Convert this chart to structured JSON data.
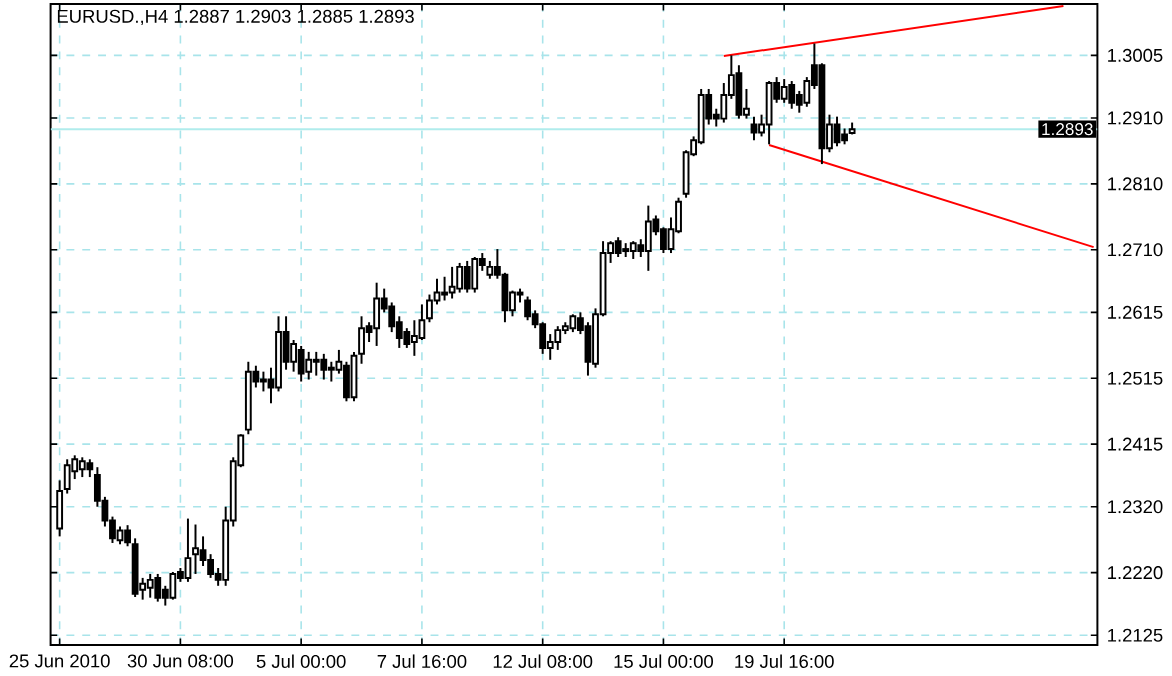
{
  "chart_data": {
    "type": "candlestick",
    "title": "EURUSD.,H4  1.2887 1.2903 1.2885 1.2893",
    "categories": [
      "25 Jun 2010",
      null,
      null,
      null,
      null,
      null,
      null,
      null,
      null,
      null,
      null,
      null,
      null,
      null,
      null,
      null,
      "30 Jun 08:00",
      null,
      null,
      null,
      null,
      null,
      null,
      null,
      null,
      null,
      null,
      null,
      null,
      null,
      null,
      null,
      "5 Jul 00:00",
      null,
      null,
      null,
      null,
      null,
      null,
      null,
      null,
      null,
      null,
      null,
      null,
      null,
      null,
      null,
      "7 Jul 16:00",
      null,
      null,
      null,
      null,
      null,
      null,
      null,
      null,
      null,
      null,
      null,
      null,
      null,
      null,
      null,
      "12 Jul 08:00",
      null,
      null,
      null,
      null,
      null,
      null,
      null,
      null,
      null,
      null,
      null,
      null,
      null,
      null,
      null,
      "15 Jul 00:00",
      null,
      null,
      null,
      null,
      null,
      null,
      null,
      null,
      null,
      null,
      null,
      null,
      null,
      null,
      null,
      "19 Jul 16:00",
      null,
      null,
      null,
      null,
      null,
      null,
      null,
      null,
      null,
      null,
      null,
      null,
      null,
      null,
      null,
      null,
      null,
      null,
      null,
      null,
      null,
      null,
      null,
      null,
      null,
      null,
      null,
      null,
      null,
      null,
      null,
      null,
      null,
      null,
      null,
      null,
      null,
      null,
      null,
      null,
      null
    ],
    "ohlc": [
      [
        1.2287,
        1.236,
        1.2275,
        1.2344
      ],
      [
        1.2347,
        1.2392,
        1.234,
        1.2383
      ],
      [
        1.2374,
        1.2398,
        1.2362,
        1.2392
      ],
      [
        1.2377,
        1.2395,
        1.2365,
        1.2389
      ],
      [
        1.2386,
        1.2392,
        1.2365,
        1.2377
      ],
      [
        1.2368,
        1.238,
        1.232,
        1.2329
      ],
      [
        1.2329,
        1.2335,
        1.229,
        1.2299
      ],
      [
        1.2299,
        1.2305,
        1.2265,
        1.2272
      ],
      [
        1.2269,
        1.229,
        1.2263,
        1.2284
      ],
      [
        1.2284,
        1.2292,
        1.226,
        1.2266
      ],
      [
        1.2263,
        1.2272,
        1.2183,
        1.2188
      ],
      [
        1.2194,
        1.2212,
        1.2179,
        1.2203
      ],
      [
        1.2197,
        1.2218,
        1.2182,
        1.2209
      ],
      [
        1.2212,
        1.2218,
        1.2176,
        1.2182
      ],
      [
        1.2194,
        1.22,
        1.217,
        1.2182
      ],
      [
        1.2182,
        1.2221,
        1.2179,
        1.2218
      ],
      [
        1.2221,
        1.2227,
        1.2206,
        1.2212
      ],
      [
        1.2212,
        1.2302,
        1.2206,
        1.2242
      ],
      [
        1.2248,
        1.2293,
        1.2218,
        1.2257
      ],
      [
        1.2254,
        1.2275,
        1.223,
        1.2239
      ],
      [
        1.2239,
        1.2248,
        1.2212,
        1.2218
      ],
      [
        1.2218,
        1.2227,
        1.22,
        1.2209
      ],
      [
        1.2209,
        1.232,
        1.22,
        1.2299
      ],
      [
        1.2299,
        1.2395,
        1.229,
        1.2389
      ],
      [
        1.2383,
        1.243,
        1.238,
        1.2428
      ],
      [
        1.2437,
        1.254,
        1.243,
        1.2525
      ],
      [
        1.2525,
        1.2534,
        1.2501,
        1.251
      ],
      [
        1.2513,
        1.2525,
        1.2495,
        1.251
      ],
      [
        1.2513,
        1.2531,
        1.2477,
        1.2501
      ],
      [
        1.2501,
        1.2609,
        1.2495,
        1.2585
      ],
      [
        1.2585,
        1.2609,
        1.2528,
        1.254
      ],
      [
        1.254,
        1.2573,
        1.2525,
        1.2567
      ],
      [
        1.2558,
        1.2564,
        1.251,
        1.2522
      ],
      [
        1.2525,
        1.2555,
        1.2513,
        1.2543
      ],
      [
        1.2543,
        1.2555,
        1.2519,
        1.254
      ],
      [
        1.2543,
        1.2552,
        1.2513,
        1.2528
      ],
      [
        1.2531,
        1.254,
        1.251,
        1.2528
      ],
      [
        1.2528,
        1.2558,
        1.2522,
        1.254
      ],
      [
        1.2534,
        1.254,
        1.248,
        1.2486
      ],
      [
        1.2486,
        1.2555,
        1.248,
        1.2549
      ],
      [
        1.2552,
        1.2609,
        1.2537,
        1.2591
      ],
      [
        1.2594,
        1.26,
        1.257,
        1.2585
      ],
      [
        1.2591,
        1.266,
        1.2564,
        1.2636
      ],
      [
        1.2636,
        1.2651,
        1.2615,
        1.2621
      ],
      [
        1.2624,
        1.263,
        1.2585,
        1.2594
      ],
      [
        1.26,
        1.2609,
        1.2561,
        1.2576
      ],
      [
        1.2585,
        1.2591,
        1.2561,
        1.2567
      ],
      [
        1.257,
        1.2603,
        1.2549,
        1.2579
      ],
      [
        1.2576,
        1.2627,
        1.2573,
        1.2603
      ],
      [
        1.2606,
        1.2642,
        1.26,
        1.2633
      ],
      [
        1.2633,
        1.2666,
        1.2627,
        1.2645
      ],
      [
        1.2645,
        1.2669,
        1.2633,
        1.2642
      ],
      [
        1.2645,
        1.2684,
        1.2636,
        1.2654
      ],
      [
        1.2651,
        1.269,
        1.2645,
        1.2684
      ],
      [
        1.2684,
        1.2693,
        1.2645,
        1.2651
      ],
      [
        1.2651,
        1.2699,
        1.2645,
        1.2696
      ],
      [
        1.2696,
        1.2705,
        1.2678,
        1.2687
      ],
      [
        1.2672,
        1.2693,
        1.2666,
        1.2684
      ],
      [
        1.2684,
        1.2711,
        1.2666,
        1.2672
      ],
      [
        1.2672,
        1.2675,
        1.26,
        1.2618
      ],
      [
        1.2618,
        1.2648,
        1.2609,
        1.2645
      ],
      [
        1.2645,
        1.2651,
        1.263,
        1.2642
      ],
      [
        1.2633,
        1.2639,
        1.2603,
        1.2609
      ],
      [
        1.2612,
        1.2618,
        1.2591,
        1.2597
      ],
      [
        1.2597,
        1.26,
        1.2552,
        1.2561
      ],
      [
        1.2561,
        1.2582,
        1.2543,
        1.257
      ],
      [
        1.257,
        1.2594,
        1.2558,
        1.2588
      ],
      [
        1.2588,
        1.26,
        1.2582,
        1.2594
      ],
      [
        1.2591,
        1.2612,
        1.2585,
        1.2609
      ],
      [
        1.2606,
        1.2615,
        1.2582,
        1.2588
      ],
      [
        1.2594,
        1.26,
        1.2519,
        1.254
      ],
      [
        1.2537,
        1.2621,
        1.2531,
        1.2612
      ],
      [
        1.2612,
        1.2723,
        1.2609,
        1.2705
      ],
      [
        1.2705,
        1.2723,
        1.269,
        1.272
      ],
      [
        1.2723,
        1.2729,
        1.2699,
        1.2705
      ],
      [
        1.2711,
        1.272,
        1.2699,
        1.2708
      ],
      [
        1.2708,
        1.2723,
        1.2696,
        1.272
      ],
      [
        1.2717,
        1.2726,
        1.2699,
        1.2708
      ],
      [
        1.2708,
        1.2777,
        1.2678,
        1.2753
      ],
      [
        1.2756,
        1.2762,
        1.2732,
        1.2738
      ],
      [
        1.2741,
        1.2744,
        1.2705,
        1.2711
      ],
      [
        1.2711,
        1.2759,
        1.2705,
        1.2741
      ],
      [
        1.2738,
        1.2789,
        1.2735,
        1.2783
      ],
      [
        1.2795,
        1.2861,
        1.2789,
        1.2858
      ],
      [
        1.2855,
        1.2882,
        1.2852,
        1.2876
      ],
      [
        1.2873,
        1.2954,
        1.287,
        1.2945
      ],
      [
        1.2945,
        1.2954,
        1.29,
        1.2909
      ],
      [
        1.2915,
        1.2924,
        1.2897,
        1.2909
      ],
      [
        1.2909,
        1.2963,
        1.2903,
        1.2945
      ],
      [
        1.2945,
        1.3005,
        1.2939,
        1.2975
      ],
      [
        1.2978,
        1.299,
        1.2909,
        1.2915
      ],
      [
        1.2915,
        1.2954,
        1.2909,
        1.2924
      ],
      [
        1.29,
        1.2912,
        1.2876,
        1.2888
      ],
      [
        1.2888,
        1.2915,
        1.2882,
        1.29
      ],
      [
        1.29,
        1.2966,
        1.287,
        1.2963
      ],
      [
        1.2963,
        1.2972,
        1.2933,
        1.2939
      ],
      [
        1.2939,
        1.2969,
        1.2933,
        1.2957
      ],
      [
        1.296,
        1.2966,
        1.2924,
        1.2933
      ],
      [
        1.2945,
        1.2951,
        1.2918,
        1.293
      ],
      [
        1.2933,
        1.2972,
        1.2927,
        1.2966
      ],
      [
        1.299,
        1.3023,
        1.2954,
        1.296
      ],
      [
        1.299,
        1.2993,
        1.284,
        1.2864
      ],
      [
        1.2864,
        1.2915,
        1.2858,
        1.29
      ],
      [
        1.29,
        1.2912,
        1.2867,
        1.2873
      ],
      [
        1.2885,
        1.2894,
        1.287,
        1.2876
      ],
      [
        1.2887,
        1.2903,
        1.2885,
        1.2893
      ],
      null,
      null,
      null,
      null,
      null,
      null,
      null,
      null,
      null,
      null,
      null,
      null,
      null,
      null,
      null,
      null,
      null,
      null,
      null,
      null,
      null,
      null,
      null,
      null,
      null,
      null,
      null,
      null,
      null,
      null,
      null,
      null
    ],
    "series": [
      {
        "type": "line",
        "color": "#ff0000",
        "values": [
          null,
          null,
          null,
          null,
          null,
          null,
          null,
          null,
          null,
          null,
          null,
          null,
          null,
          null,
          null,
          null,
          null,
          null,
          null,
          null,
          null,
          null,
          null,
          null,
          null,
          null,
          null,
          null,
          null,
          null,
          null,
          null,
          null,
          null,
          null,
          null,
          null,
          null,
          null,
          null,
          null,
          null,
          null,
          null,
          null,
          null,
          null,
          null,
          null,
          null,
          null,
          null,
          null,
          null,
          null,
          null,
          null,
          null,
          null,
          null,
          null,
          null,
          null,
          null,
          null,
          null,
          null,
          null,
          null,
          null,
          null,
          null,
          null,
          null,
          null,
          null,
          null,
          null,
          null,
          null,
          null,
          null,
          null,
          null,
          null,
          null,
          null,
          null,
          1.3004,
          null,
          null,
          null,
          null,
          null,
          null,
          null,
          null,
          null,
          null,
          null,
          null,
          null,
          null,
          null,
          null,
          null,
          null,
          null,
          null,
          null,
          null,
          null,
          null,
          null,
          null,
          null,
          null,
          null,
          null,
          null,
          null,
          null,
          null,
          null,
          null,
          null,
          null,
          null,
          null,
          null,
          null,
          null,
          null,
          1.308,
          null,
          null,
          null,
          null
        ]
      },
      {
        "type": "line",
        "color": "#ff0000",
        "values": [
          null,
          null,
          null,
          null,
          null,
          null,
          null,
          null,
          null,
          null,
          null,
          null,
          null,
          null,
          null,
          null,
          null,
          null,
          null,
          null,
          null,
          null,
          null,
          null,
          null,
          null,
          null,
          null,
          null,
          null,
          null,
          null,
          null,
          null,
          null,
          null,
          null,
          null,
          null,
          null,
          null,
          null,
          null,
          null,
          null,
          null,
          null,
          null,
          null,
          null,
          null,
          null,
          null,
          null,
          null,
          null,
          null,
          null,
          null,
          null,
          null,
          null,
          null,
          null,
          null,
          null,
          null,
          null,
          null,
          null,
          null,
          null,
          null,
          null,
          null,
          null,
          null,
          null,
          null,
          null,
          null,
          null,
          null,
          null,
          null,
          null,
          null,
          null,
          null,
          null,
          null,
          null,
          null,
          null,
          1.2869,
          null,
          null,
          null,
          null,
          null,
          null,
          null,
          null,
          null,
          null,
          null,
          null,
          null,
          null,
          null,
          null,
          null,
          null,
          null,
          null,
          null,
          null,
          null,
          null,
          null,
          null,
          null,
          null,
          null,
          null,
          null,
          null,
          null,
          null,
          null,
          null,
          null,
          null,
          null,
          null,
          null,
          null,
          1.2714
        ]
      }
    ],
    "ylim": [
      1.211,
      1.3083
    ],
    "yticks": [
      1.2125,
      {
        "value": 1.222,
        "label": "1.2220"
      },
      {
        "value": 1.232,
        "label": "1.2320"
      },
      1.2415,
      1.2515,
      1.2615,
      {
        "value": 1.271,
        "label": "1.2710"
      },
      {
        "value": 1.281,
        "label": "1.2810"
      },
      {
        "value": 1.291,
        "label": "1.2910"
      },
      1.3005
    ],
    "ref_lines": [
      {
        "axis": "y",
        "value": 1.2893,
        "label": "1.2893",
        "color": "#b0ecec"
      }
    ],
    "grid": true
  }
}
